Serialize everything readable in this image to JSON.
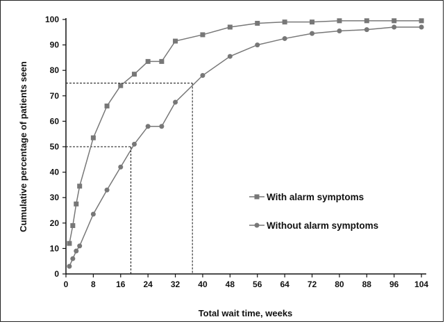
{
  "chart_data": {
    "type": "line",
    "xlabel": "Total wait time, weeks",
    "ylabel": "Cumulative percentage of patients seen",
    "xlim": [
      0,
      105
    ],
    "ylim": [
      0,
      100
    ],
    "x_ticks": [
      0,
      8,
      16,
      24,
      32,
      40,
      48,
      56,
      64,
      72,
      80,
      88,
      96,
      104
    ],
    "y_ticks": [
      0,
      10,
      20,
      30,
      40,
      50,
      60,
      70,
      80,
      90,
      100
    ],
    "grid": false,
    "legend_position": "center-right",
    "series": [
      {
        "name": "With alarm symptoms",
        "marker": "square",
        "color": "#777777",
        "points": [
          [
            1,
            12
          ],
          [
            2,
            19
          ],
          [
            3,
            27.5
          ],
          [
            4,
            34.5
          ],
          [
            8,
            53.5
          ],
          [
            12,
            66
          ],
          [
            16,
            74
          ],
          [
            20,
            78.5
          ],
          [
            24,
            83.5
          ],
          [
            28,
            83.5
          ],
          [
            32,
            91.5
          ],
          [
            40,
            94
          ],
          [
            48,
            97
          ],
          [
            56,
            98.5
          ],
          [
            64,
            99
          ],
          [
            72,
            99
          ],
          [
            80,
            99.5
          ],
          [
            88,
            99.5
          ],
          [
            96,
            99.5
          ],
          [
            104,
            99.5
          ]
        ]
      },
      {
        "name": "Without alarm symptoms",
        "marker": "circle",
        "color": "#777777",
        "points": [
          [
            1,
            3
          ],
          [
            2,
            6
          ],
          [
            3,
            9
          ],
          [
            4,
            11
          ],
          [
            8,
            23.5
          ],
          [
            12,
            33
          ],
          [
            16,
            42
          ],
          [
            20,
            51
          ],
          [
            24,
            58
          ],
          [
            28,
            58
          ],
          [
            32,
            67.5
          ],
          [
            40,
            78
          ],
          [
            48,
            85.5
          ],
          [
            56,
            90
          ],
          [
            64,
            92.5
          ],
          [
            72,
            94.5
          ],
          [
            80,
            95.5
          ],
          [
            88,
            96
          ],
          [
            96,
            97
          ],
          [
            104,
            97
          ]
        ]
      }
    ],
    "reference_lines": [
      {
        "series": "With alarm symptoms",
        "y": 75,
        "x": 37
      },
      {
        "series": "Without alarm symptoms",
        "y": 50,
        "x": 19
      }
    ]
  }
}
